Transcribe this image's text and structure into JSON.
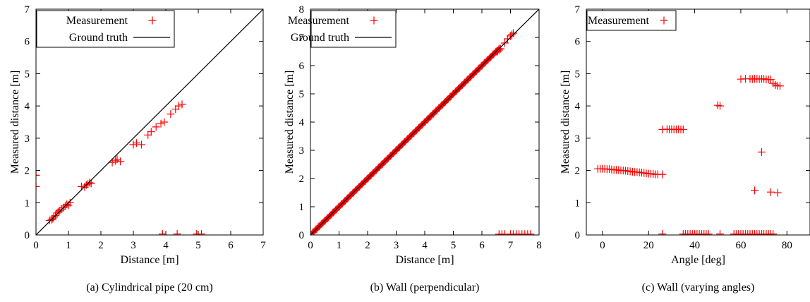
{
  "colors": {
    "measurement": "#ff0000",
    "ground_truth": "#000000"
  },
  "chart_data": [
    {
      "type": "scatter",
      "caption": "(a) Cylindrical pipe (20 cm)",
      "xlabel": "Distance [m]",
      "ylabel": "Measured distance [m]",
      "xlim": [
        0,
        7
      ],
      "ylim": [
        0,
        7
      ],
      "xticks": [
        "0",
        "1",
        "2",
        "3",
        "4",
        "5",
        "6",
        "7"
      ],
      "yticks": [
        "0",
        "1",
        "2",
        "3",
        "4",
        "5",
        "6",
        "7"
      ],
      "legend_position": "top-left",
      "series": [
        {
          "name": "Measurement",
          "marker": "plus",
          "points": [
            [
              0.0,
              1.85
            ],
            [
              0.0,
              1.5
            ],
            [
              0.42,
              0.45
            ],
            [
              0.48,
              0.48
            ],
            [
              0.52,
              0.5
            ],
            [
              0.55,
              0.55
            ],
            [
              0.6,
              0.6
            ],
            [
              0.65,
              0.68
            ],
            [
              0.7,
              0.72
            ],
            [
              0.72,
              0.75
            ],
            [
              0.78,
              0.8
            ],
            [
              0.85,
              0.85
            ],
            [
              0.9,
              0.9
            ],
            [
              0.95,
              0.95
            ],
            [
              1.0,
              0.92
            ],
            [
              1.05,
              1.0
            ],
            [
              1.4,
              1.5
            ],
            [
              1.5,
              1.48
            ],
            [
              1.55,
              1.55
            ],
            [
              1.6,
              1.58
            ],
            [
              1.65,
              1.62
            ],
            [
              1.7,
              1.6
            ],
            [
              2.35,
              2.25
            ],
            [
              2.45,
              2.3
            ],
            [
              2.5,
              2.35
            ],
            [
              2.6,
              2.28
            ],
            [
              3.0,
              2.8
            ],
            [
              3.1,
              2.85
            ],
            [
              3.25,
              2.8
            ],
            [
              3.45,
              3.1
            ],
            [
              3.55,
              3.2
            ],
            [
              3.7,
              3.35
            ],
            [
              3.85,
              3.45
            ],
            [
              3.95,
              3.5
            ],
            [
              4.15,
              3.75
            ],
            [
              4.3,
              3.9
            ],
            [
              4.4,
              4.0
            ],
            [
              4.5,
              4.05
            ],
            [
              3.9,
              0.03
            ],
            [
              4.35,
              0.03
            ],
            [
              4.95,
              0.03
            ],
            [
              5.1,
              0.03
            ]
          ]
        },
        {
          "name": "Ground truth",
          "type": "line",
          "x": [
            0,
            7
          ],
          "y": [
            0,
            7
          ]
        }
      ]
    },
    {
      "type": "scatter",
      "caption": "(b) Wall (perpendicular)",
      "xlabel": "Distance [m]",
      "ylabel": "Measured distance [m]",
      "xlim": [
        0,
        8
      ],
      "ylim": [
        0,
        8
      ],
      "xticks": [
        "0",
        "1",
        "2",
        "3",
        "4",
        "5",
        "6",
        "7",
        "8"
      ],
      "yticks": [
        "0",
        "1",
        "2",
        "3",
        "4",
        "5",
        "6",
        "7",
        "8"
      ],
      "legend_position": "top-left",
      "series": [
        {
          "name": "Measurement",
          "marker": "plus",
          "dense_diagonal": {
            "x_range": [
              0.1,
              6.6
            ],
            "offset": 0.0
          },
          "points": [
            [
              6.55,
              6.5
            ],
            [
              6.6,
              6.55
            ],
            [
              6.65,
              6.6
            ],
            [
              6.8,
              6.8
            ],
            [
              6.9,
              6.95
            ],
            [
              7.0,
              7.05
            ],
            [
              7.05,
              7.1
            ],
            [
              7.1,
              7.15
            ],
            [
              6.6,
              0.03
            ],
            [
              6.7,
              0.03
            ],
            [
              6.8,
              0.03
            ],
            [
              7.0,
              0.03
            ],
            [
              7.1,
              0.03
            ],
            [
              7.2,
              0.03
            ],
            [
              7.3,
              0.03
            ],
            [
              7.4,
              0.03
            ],
            [
              7.5,
              0.03
            ],
            [
              7.6,
              0.03
            ],
            [
              7.7,
              0.03
            ]
          ]
        },
        {
          "name": "Ground truth",
          "type": "line",
          "x": [
            0,
            8
          ],
          "y": [
            0,
            8
          ]
        }
      ]
    },
    {
      "type": "scatter",
      "caption": "(c) Wall (varying angles)",
      "xlabel": "Angle [deg]",
      "ylabel": "Measured distance [m]",
      "xlim": [
        -7,
        90
      ],
      "ylim": [
        0,
        7
      ],
      "xticks": [
        "0",
        "20",
        "40",
        "60",
        "80"
      ],
      "yticks": [
        "0",
        "1",
        "2",
        "3",
        "4",
        "5",
        "6",
        "7"
      ],
      "legend_position": "top-left",
      "series": [
        {
          "name": "Measurement",
          "marker": "plus",
          "points": [
            [
              -2,
              2.05
            ],
            [
              -1,
              2.05
            ],
            [
              0,
              2.05
            ],
            [
              1,
              2.05
            ],
            [
              2,
              2.04
            ],
            [
              3,
              2.04
            ],
            [
              4,
              2.03
            ],
            [
              5,
              2.02
            ],
            [
              6,
              2.02
            ],
            [
              7,
              2.01
            ],
            [
              8,
              2.0
            ],
            [
              9,
              2.0
            ],
            [
              10,
              1.99
            ],
            [
              11,
              1.98
            ],
            [
              12,
              1.97
            ],
            [
              13,
              1.96
            ],
            [
              14,
              1.95
            ],
            [
              15,
              1.95
            ],
            [
              16,
              1.94
            ],
            [
              17,
              1.93
            ],
            [
              18,
              1.92
            ],
            [
              19,
              1.91
            ],
            [
              20,
              1.9
            ],
            [
              21,
              1.9
            ],
            [
              22,
              1.89
            ],
            [
              23,
              1.88
            ],
            [
              24,
              1.88
            ],
            [
              26,
              1.88
            ],
            [
              26,
              3.27
            ],
            [
              28,
              3.28
            ],
            [
              29,
              3.28
            ],
            [
              30,
              3.28
            ],
            [
              31,
              3.27
            ],
            [
              32,
              3.27
            ],
            [
              33,
              3.28
            ],
            [
              34,
              3.27
            ],
            [
              35,
              3.27
            ],
            [
              50,
              4.02
            ],
            [
              51,
              4.0
            ],
            [
              60,
              4.83
            ],
            [
              62,
              4.84
            ],
            [
              64,
              4.84
            ],
            [
              65,
              4.83
            ],
            [
              66,
              4.84
            ],
            [
              67,
              4.84
            ],
            [
              68,
              4.83
            ],
            [
              69,
              4.84
            ],
            [
              70,
              4.84
            ],
            [
              71,
              4.82
            ],
            [
              72,
              4.82
            ],
            [
              73,
              4.82
            ],
            [
              74,
              4.7
            ],
            [
              75,
              4.65
            ],
            [
              76,
              4.62
            ],
            [
              77,
              4.62
            ],
            [
              69,
              2.57
            ],
            [
              66,
              1.38
            ],
            [
              73,
              1.33
            ],
            [
              76,
              1.31
            ],
            [
              26,
              0.03
            ],
            [
              35,
              0.03
            ],
            [
              36,
              0.03
            ],
            [
              37,
              0.03
            ],
            [
              38,
              0.03
            ],
            [
              39,
              0.03
            ],
            [
              40,
              0.03
            ],
            [
              41,
              0.03
            ],
            [
              42,
              0.03
            ],
            [
              43,
              0.03
            ],
            [
              44,
              0.03
            ],
            [
              45,
              0.03
            ],
            [
              46,
              0.03
            ],
            [
              51,
              0.03
            ],
            [
              57,
              0.03
            ],
            [
              58,
              0.03
            ],
            [
              59,
              0.03
            ],
            [
              60,
              0.03
            ],
            [
              61,
              0.03
            ],
            [
              62,
              0.03
            ],
            [
              63,
              0.03
            ],
            [
              64,
              0.03
            ],
            [
              65,
              0.03
            ],
            [
              66,
              0.03
            ],
            [
              67,
              0.03
            ],
            [
              68,
              0.03
            ],
            [
              69,
              0.03
            ],
            [
              70,
              0.03
            ],
            [
              71,
              0.03
            ],
            [
              72,
              0.03
            ],
            [
              73,
              0.03
            ],
            [
              74,
              0.03
            ]
          ]
        }
      ]
    }
  ]
}
